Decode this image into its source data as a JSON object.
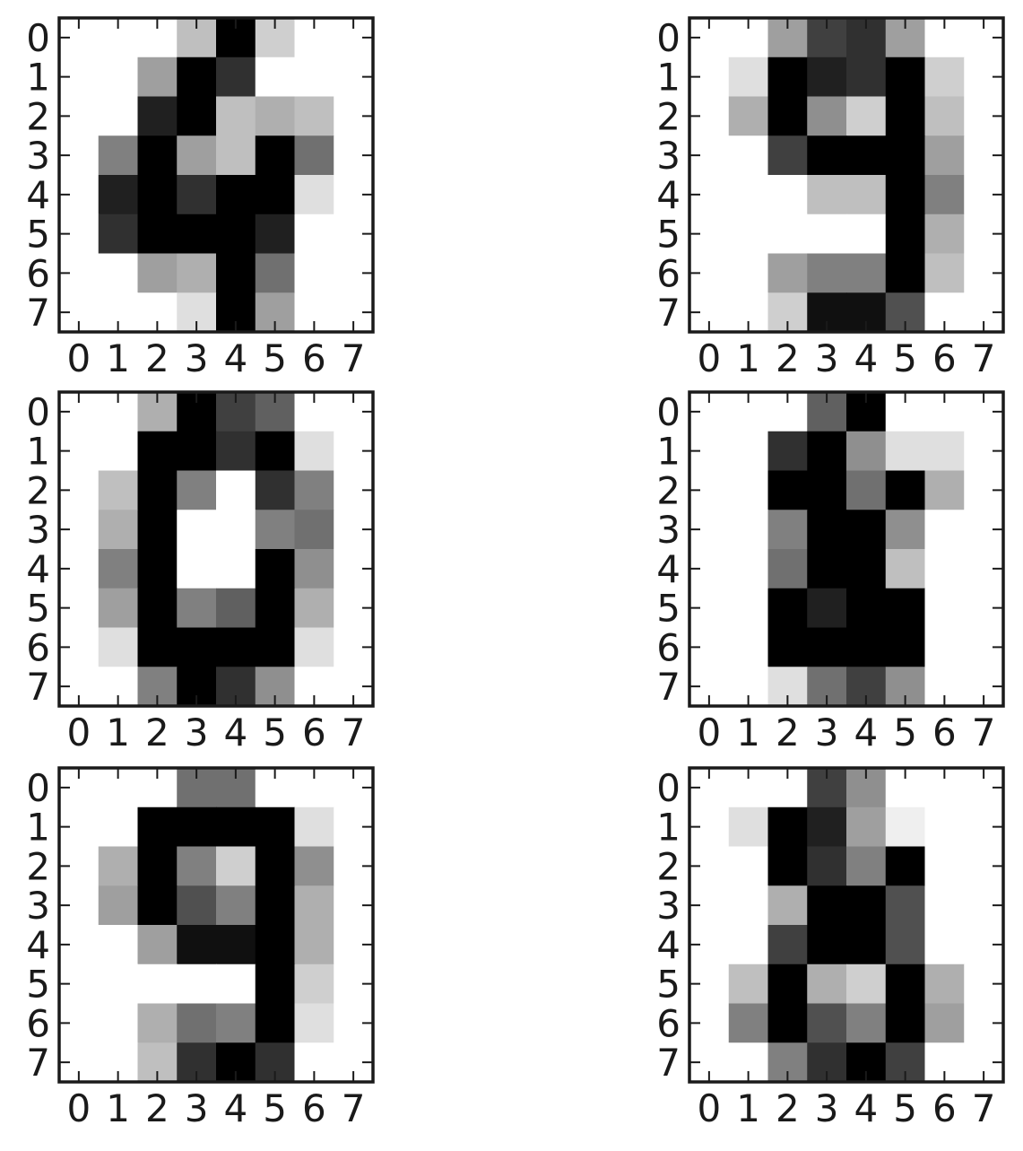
{
  "chart_data": [
    {
      "type": "heatmap",
      "colormap": "gray_r",
      "xticks": [
        "0",
        "1",
        "2",
        "3",
        "4",
        "5",
        "6",
        "7"
      ],
      "yticks": [
        "0",
        "1",
        "2",
        "3",
        "4",
        "5",
        "6",
        "7"
      ],
      "values": [
        [
          0,
          0,
          0,
          4,
          16,
          3,
          0,
          0
        ],
        [
          0,
          0,
          6,
          16,
          13,
          0,
          0,
          0
        ],
        [
          0,
          0,
          14,
          16,
          4,
          5,
          4,
          0
        ],
        [
          0,
          8,
          16,
          6,
          4,
          16,
          9,
          0
        ],
        [
          0,
          14,
          16,
          13,
          16,
          16,
          2,
          0
        ],
        [
          0,
          13,
          16,
          16,
          16,
          14,
          0,
          0
        ],
        [
          0,
          0,
          6,
          5,
          16,
          9,
          0,
          0
        ],
        [
          0,
          0,
          0,
          2,
          16,
          6,
          0,
          0
        ]
      ]
    },
    {
      "type": "heatmap",
      "colormap": "gray_r",
      "xticks": [
        "0",
        "1",
        "2",
        "3",
        "4",
        "5",
        "6",
        "7"
      ],
      "yticks": [
        "0",
        "1",
        "2",
        "3",
        "4",
        "5",
        "6",
        "7"
      ],
      "values": [
        [
          0,
          0,
          6,
          12,
          13,
          6,
          0,
          0
        ],
        [
          0,
          2,
          16,
          14,
          13,
          16,
          3,
          0
        ],
        [
          0,
          5,
          16,
          7,
          3,
          16,
          4,
          0
        ],
        [
          0,
          0,
          12,
          16,
          16,
          16,
          6,
          0
        ],
        [
          0,
          0,
          0,
          4,
          4,
          16,
          8,
          0
        ],
        [
          0,
          0,
          0,
          0,
          0,
          16,
          5,
          0
        ],
        [
          0,
          0,
          6,
          8,
          8,
          16,
          4,
          0
        ],
        [
          0,
          0,
          3,
          15,
          15,
          11,
          0,
          0
        ]
      ]
    },
    {
      "type": "heatmap",
      "colormap": "gray_r",
      "xticks": [
        "0",
        "1",
        "2",
        "3",
        "4",
        "5",
        "6",
        "7"
      ],
      "yticks": [
        "0",
        "1",
        "2",
        "3",
        "4",
        "5",
        "6",
        "7"
      ],
      "values": [
        [
          0,
          0,
          5,
          16,
          12,
          10,
          0,
          0
        ],
        [
          0,
          0,
          16,
          16,
          13,
          16,
          2,
          0
        ],
        [
          0,
          4,
          16,
          8,
          0,
          13,
          8,
          0
        ],
        [
          0,
          5,
          16,
          0,
          0,
          8,
          9,
          0
        ],
        [
          0,
          8,
          16,
          0,
          0,
          16,
          7,
          0
        ],
        [
          0,
          6,
          16,
          8,
          10,
          16,
          5,
          0
        ],
        [
          0,
          2,
          16,
          16,
          16,
          16,
          2,
          0
        ],
        [
          0,
          0,
          8,
          16,
          13,
          7,
          0,
          0
        ]
      ]
    },
    {
      "type": "heatmap",
      "colormap": "gray_r",
      "xticks": [
        "0",
        "1",
        "2",
        "3",
        "4",
        "5",
        "6",
        "7"
      ],
      "yticks": [
        "0",
        "1",
        "2",
        "3",
        "4",
        "5",
        "6",
        "7"
      ],
      "values": [
        [
          0,
          0,
          0,
          10,
          16,
          0,
          0,
          0
        ],
        [
          0,
          0,
          13,
          16,
          7,
          2,
          2,
          0
        ],
        [
          0,
          0,
          16,
          16,
          9,
          16,
          5,
          0
        ],
        [
          0,
          0,
          8,
          16,
          16,
          7,
          0,
          0
        ],
        [
          0,
          0,
          9,
          16,
          16,
          4,
          0,
          0
        ],
        [
          0,
          0,
          16,
          14,
          16,
          16,
          0,
          0
        ],
        [
          0,
          0,
          16,
          16,
          16,
          16,
          0,
          0
        ],
        [
          0,
          0,
          2,
          9,
          12,
          7,
          0,
          0
        ]
      ]
    },
    {
      "type": "heatmap",
      "colormap": "gray_r",
      "xticks": [
        "0",
        "1",
        "2",
        "3",
        "4",
        "5",
        "6",
        "7"
      ],
      "yticks": [
        "0",
        "1",
        "2",
        "3",
        "4",
        "5",
        "6",
        "7"
      ],
      "values": [
        [
          0,
          0,
          0,
          9,
          9,
          0,
          0,
          0
        ],
        [
          0,
          0,
          16,
          16,
          16,
          16,
          2,
          0
        ],
        [
          0,
          5,
          16,
          8,
          3,
          16,
          7,
          0
        ],
        [
          0,
          6,
          16,
          11,
          8,
          16,
          5,
          0
        ],
        [
          0,
          0,
          6,
          15,
          15,
          16,
          5,
          0
        ],
        [
          0,
          0,
          0,
          0,
          0,
          16,
          3,
          0
        ],
        [
          0,
          0,
          5,
          9,
          8,
          16,
          2,
          0
        ],
        [
          0,
          0,
          4,
          13,
          16,
          13,
          0,
          0
        ]
      ]
    },
    {
      "type": "heatmap",
      "colormap": "gray_r",
      "xticks": [
        "0",
        "1",
        "2",
        "3",
        "4",
        "5",
        "6",
        "7"
      ],
      "yticks": [
        "0",
        "1",
        "2",
        "3",
        "4",
        "5",
        "6",
        "7"
      ],
      "values": [
        [
          0,
          0,
          0,
          12,
          7,
          0,
          0,
          0
        ],
        [
          0,
          2,
          16,
          14,
          6,
          1,
          0,
          0
        ],
        [
          0,
          0,
          16,
          13,
          8,
          16,
          0,
          0
        ],
        [
          0,
          0,
          5,
          16,
          16,
          11,
          0,
          0
        ],
        [
          0,
          0,
          12,
          16,
          16,
          11,
          0,
          0
        ],
        [
          0,
          4,
          16,
          5,
          3,
          16,
          5,
          0
        ],
        [
          0,
          8,
          16,
          11,
          8,
          16,
          6,
          0
        ],
        [
          0,
          0,
          8,
          13,
          16,
          12,
          0,
          0
        ]
      ]
    }
  ]
}
